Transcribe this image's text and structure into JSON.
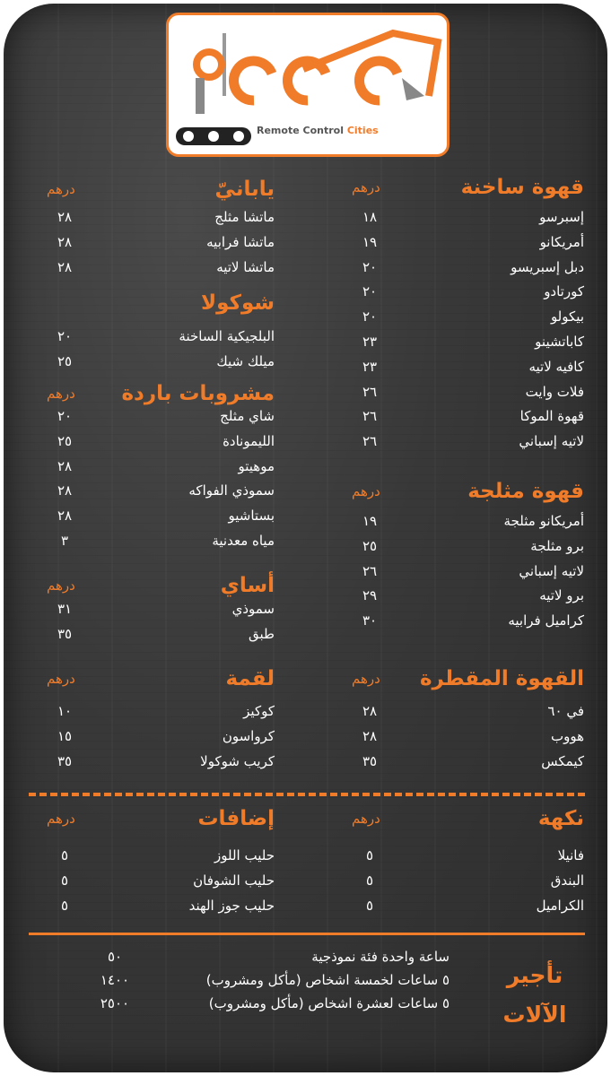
{
  "header": {
    "brand": "Remote Control",
    "brand_highlight": "Cities"
  },
  "sections": [
    {
      "title": "قهوة ساخنة",
      "unit": "درهم",
      "items": [
        {
          "name": "إسبرسو",
          "price": "١٨"
        },
        {
          "name": "أمريكانو",
          "price": "١٩"
        },
        {
          "name": "دبل إسبريسو",
          "price": "٢٠"
        },
        {
          "name": "كورتادو",
          "price": "٢٠"
        },
        {
          "name": "بيكولو",
          "price": "٢٠"
        },
        {
          "name": "كاباتشينو",
          "price": "٢٣"
        },
        {
          "name": "كافيه لاتيه",
          "price": "٢٣"
        },
        {
          "name": "فلات وايت",
          "price": "٢٦"
        },
        {
          "name": "قهوة الموكا",
          "price": "٢٦"
        },
        {
          "name": "لاتيه إسباني",
          "price": "٢٦"
        }
      ]
    },
    {
      "title": "قهوة مثلجة",
      "unit": "درهم",
      "items": [
        {
          "name": "أمريكانو مثلجة",
          "price": "١٩"
        },
        {
          "name": "برو مثلجة",
          "price": "٢٥"
        },
        {
          "name": "لاتيه إسباني",
          "price": "٢٦"
        },
        {
          "name": "برو لاتيه",
          "price": "٢٩"
        },
        {
          "name": "كراميل فرابيه",
          "price": "٣٠"
        }
      ]
    },
    {
      "title": "القهوة المقطرة",
      "unit": "درهم",
      "items": [
        {
          "name": "في ٦٠",
          "price": "٢٨"
        },
        {
          "name": "هووب",
          "price": "٢٨"
        },
        {
          "name": "كيمكس",
          "price": "٣٥"
        }
      ]
    },
    {
      "title": "يابانيّ",
      "unit": "درهم",
      "items": [
        {
          "name": "ماتشا مثلج",
          "price": "٢٨"
        },
        {
          "name": "ماتشا فرابيه",
          "price": "٢٨"
        },
        {
          "name": "ماتشا لاتيه",
          "price": "٢٨"
        }
      ]
    },
    {
      "title": "شوكولا",
      "items": [
        {
          "name": "البلجيكية الساخنة",
          "price": "٢٠"
        },
        {
          "name": "ميلك شيك",
          "price": "٢٥"
        }
      ]
    },
    {
      "title": "مشروبات باردة",
      "unit": "درهم",
      "items": [
        {
          "name": "شاي مثلج",
          "price": "٢٠"
        },
        {
          "name": "الليمونادة",
          "price": "٢٥"
        },
        {
          "name": "موهيتو",
          "price": "٢٨"
        },
        {
          "name": "سموذي الفواكه",
          "price": "٢٨"
        },
        {
          "name": "بستاشيو",
          "price": "٢٨"
        },
        {
          "name": "مياه معدنية",
          "price": "٣"
        }
      ]
    },
    {
      "title": "أساي",
      "unit": "درهم",
      "items": [
        {
          "name": "سموذي",
          "price": "٣١"
        },
        {
          "name": "طبق",
          "price": "٣٥"
        }
      ]
    },
    {
      "title": "لقمة",
      "unit": "درهم",
      "items": [
        {
          "name": "كوكيز",
          "price": "١٠"
        },
        {
          "name": "كرواسون",
          "price": "١٥"
        },
        {
          "name": "كريب شوكولا",
          "price": "٣٥"
        }
      ]
    },
    {
      "title": "نكهة",
      "unit": "درهم",
      "items": [
        {
          "name": "فانيلا",
          "price": "٥"
        },
        {
          "name": "البندق",
          "price": "٥"
        },
        {
          "name": "الكراميل",
          "price": "٥"
        }
      ]
    },
    {
      "title": "إضافات",
      "unit": "درهم",
      "items": [
        {
          "name": "حليب اللوز",
          "price": "٥"
        },
        {
          "name": "حليب الشوفان",
          "price": "٥"
        },
        {
          "name": "حليب جوز الهند",
          "price": "٥"
        }
      ]
    }
  ],
  "rental": {
    "title": "تأجير الآلات",
    "rows": [
      {
        "label": "ساعة واحدة فئة نموذجية",
        "price": "٥٠"
      },
      {
        "label": "٥ ساعات لخمسة اشخاص (مأكل ومشروب)",
        "price": "١٤٠٠"
      },
      {
        "label": "٥ ساعات لعشرة اشخاص (مأكل ومشروب)",
        "price": "٢٥٠٠"
      }
    ]
  }
}
